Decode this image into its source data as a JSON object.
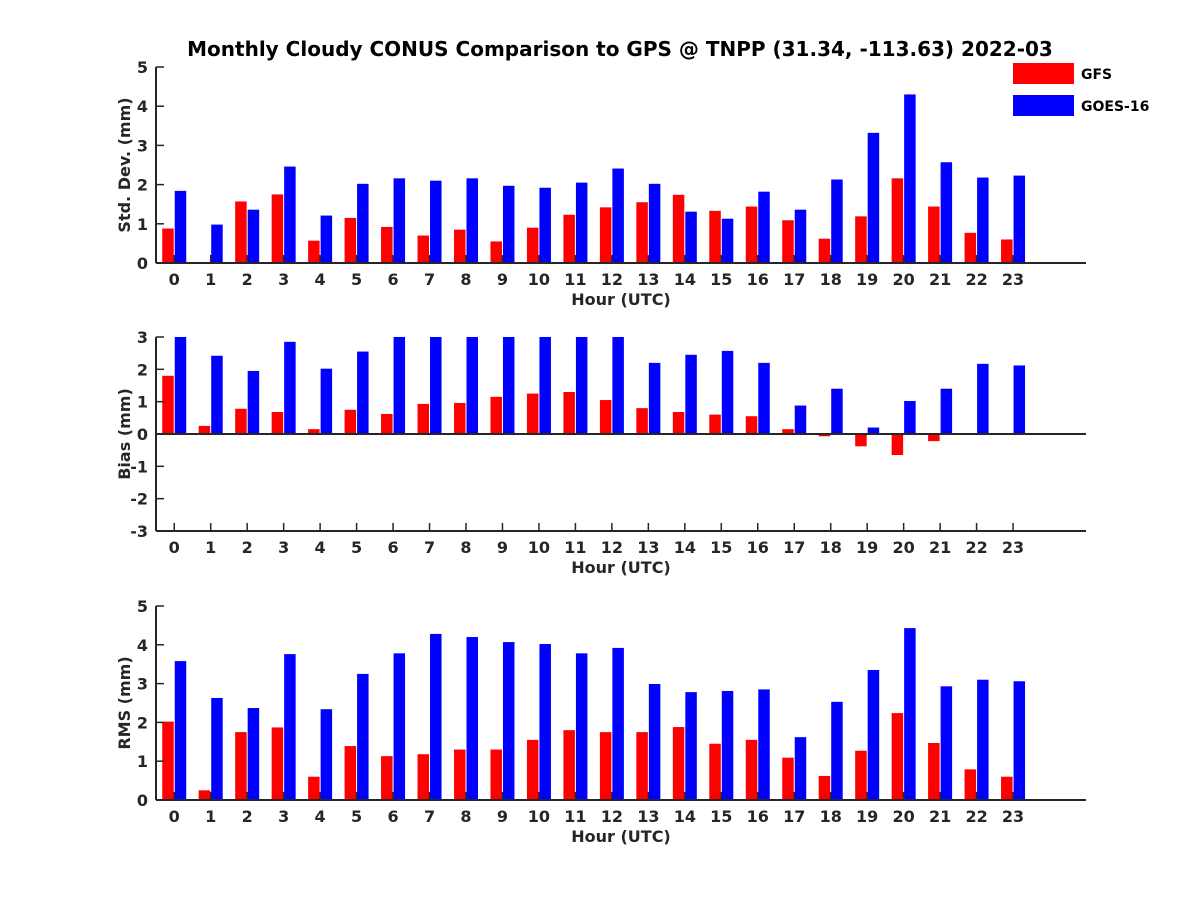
{
  "title": "Monthly Cloudy CONUS Comparison to GPS @ TNPP (31.34, -113.63) 2022-03",
  "colors": {
    "GFS": "#ff0000",
    "GOES-16": "#0000ff",
    "axis": "#262626"
  },
  "legend": {
    "entries": [
      "GFS",
      "GOES-16"
    ],
    "placement": "top-right"
  },
  "chart_data": [
    {
      "type": "bar",
      "title": "Monthly Cloudy CONUS Comparison to GPS @ TNPP (31.34, -113.63) 2022-03",
      "xlabel": "Hour (UTC)",
      "ylabel": "Std. Dev. (mm)",
      "ylim": [
        0,
        5
      ],
      "yticks": [
        0,
        1,
        2,
        3,
        4,
        5
      ],
      "categories": [
        "0",
        "1",
        "2",
        "3",
        "4",
        "5",
        "6",
        "7",
        "8",
        "9",
        "10",
        "11",
        "12",
        "13",
        "14",
        "15",
        "16",
        "17",
        "18",
        "19",
        "20",
        "21",
        "22",
        "23"
      ],
      "series": [
        {
          "name": "GFS",
          "values": [
            0.88,
            0.0,
            1.57,
            1.75,
            0.57,
            1.15,
            0.92,
            0.7,
            0.85,
            0.55,
            0.9,
            1.23,
            1.42,
            1.55,
            1.74,
            1.33,
            1.44,
            1.09,
            0.62,
            1.19,
            2.16,
            1.44,
            0.77,
            0.6
          ]
        },
        {
          "name": "GOES-16",
          "values": [
            1.84,
            0.98,
            1.36,
            2.46,
            1.21,
            2.02,
            2.16,
            2.1,
            2.16,
            1.97,
            1.92,
            2.05,
            2.41,
            2.02,
            1.31,
            1.13,
            1.82,
            1.36,
            2.13,
            3.32,
            4.3,
            2.57,
            2.18,
            2.23
          ]
        }
      ],
      "grid": false,
      "legend_placement": "top-right"
    },
    {
      "type": "bar",
      "xlabel": "Hour (UTC)",
      "ylabel": "Bias (mm)",
      "ylim": [
        -3,
        3
      ],
      "yticks": [
        -3,
        -2,
        -1,
        0,
        1,
        2,
        3
      ],
      "categories": [
        "0",
        "1",
        "2",
        "3",
        "4",
        "5",
        "6",
        "7",
        "8",
        "9",
        "10",
        "11",
        "12",
        "13",
        "14",
        "15",
        "16",
        "17",
        "18",
        "19",
        "20",
        "21",
        "22",
        "23"
      ],
      "series": [
        {
          "name": "GFS",
          "values": [
            1.8,
            0.25,
            0.78,
            0.68,
            0.15,
            0.75,
            0.62,
            0.93,
            0.96,
            1.15,
            1.25,
            1.3,
            1.05,
            0.8,
            0.68,
            0.6,
            0.55,
            0.15,
            -0.07,
            -0.38,
            -0.65,
            -0.22,
            0.03,
            0.0
          ]
        },
        {
          "name": "GOES-16",
          "values": [
            3.0,
            2.42,
            1.95,
            2.85,
            2.02,
            2.55,
            3.0,
            3.0,
            3.0,
            3.0,
            3.0,
            3.0,
            3.0,
            2.2,
            2.45,
            2.57,
            2.2,
            0.88,
            1.4,
            0.2,
            1.02,
            1.4,
            2.17,
            2.12
          ]
        }
      ],
      "grid": false
    },
    {
      "type": "bar",
      "xlabel": "Hour (UTC)",
      "ylabel": "RMS (mm)",
      "ylim": [
        0,
        5
      ],
      "yticks": [
        0,
        1,
        2,
        3,
        4,
        5
      ],
      "categories": [
        "0",
        "1",
        "2",
        "3",
        "4",
        "5",
        "6",
        "7",
        "8",
        "9",
        "10",
        "11",
        "12",
        "13",
        "14",
        "15",
        "16",
        "17",
        "18",
        "19",
        "20",
        "21",
        "22",
        "23"
      ],
      "series": [
        {
          "name": "GFS",
          "values": [
            2.02,
            0.25,
            1.75,
            1.87,
            0.6,
            1.39,
            1.13,
            1.18,
            1.3,
            1.3,
            1.55,
            1.8,
            1.75,
            1.75,
            1.88,
            1.45,
            1.55,
            1.09,
            0.62,
            1.27,
            2.24,
            1.47,
            0.79,
            0.6
          ]
        },
        {
          "name": "GOES-16",
          "values": [
            3.58,
            2.63,
            2.37,
            3.76,
            2.34,
            3.25,
            3.78,
            4.28,
            4.2,
            4.07,
            4.02,
            3.78,
            3.92,
            2.99,
            2.78,
            2.81,
            2.85,
            1.62,
            2.53,
            3.35,
            4.43,
            2.93,
            3.1,
            3.06
          ]
        }
      ],
      "grid": false
    }
  ]
}
